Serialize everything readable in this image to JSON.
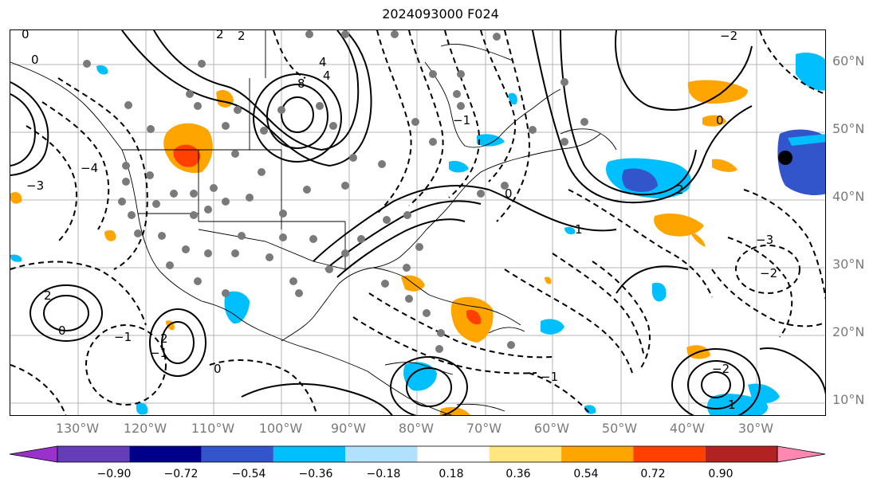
{
  "title": "2024093000 F024",
  "lat_labels": [
    "60°N",
    "50°N",
    "40°N",
    "30°N",
    "20°N",
    "10°N"
  ],
  "lon_labels": [
    "130°W",
    "120°W",
    "110°W",
    "100°W",
    "90°W",
    "80°W",
    "70°W",
    "60°W",
    "50°W",
    "40°W",
    "30°W"
  ],
  "colorbar": {
    "colors": [
      "#9932cc",
      "#663db8",
      "#00008b",
      "#3355cc",
      "#00bfff",
      "#b0e2ff",
      "#ffffff",
      "#ffe680",
      "#ffa500",
      "#ff4000",
      "#b22222",
      "#ff88b0"
    ],
    "tick_labels": [
      "−0.90",
      "−0.72",
      "−0.54",
      "−0.36",
      "−0.18",
      "0.18",
      "0.36",
      "0.54",
      "0.72",
      "0.90"
    ]
  },
  "contour_labels": [
    "0",
    "2",
    "4",
    "8",
    "4",
    "2",
    "0",
    "−1",
    "0",
    "−2",
    "−3",
    "−4",
    "0",
    "1",
    "2",
    "−2",
    "0",
    "−3",
    "−1",
    "2",
    "−2",
    "1",
    "−1",
    "0",
    "2",
    "−1"
  ]
}
